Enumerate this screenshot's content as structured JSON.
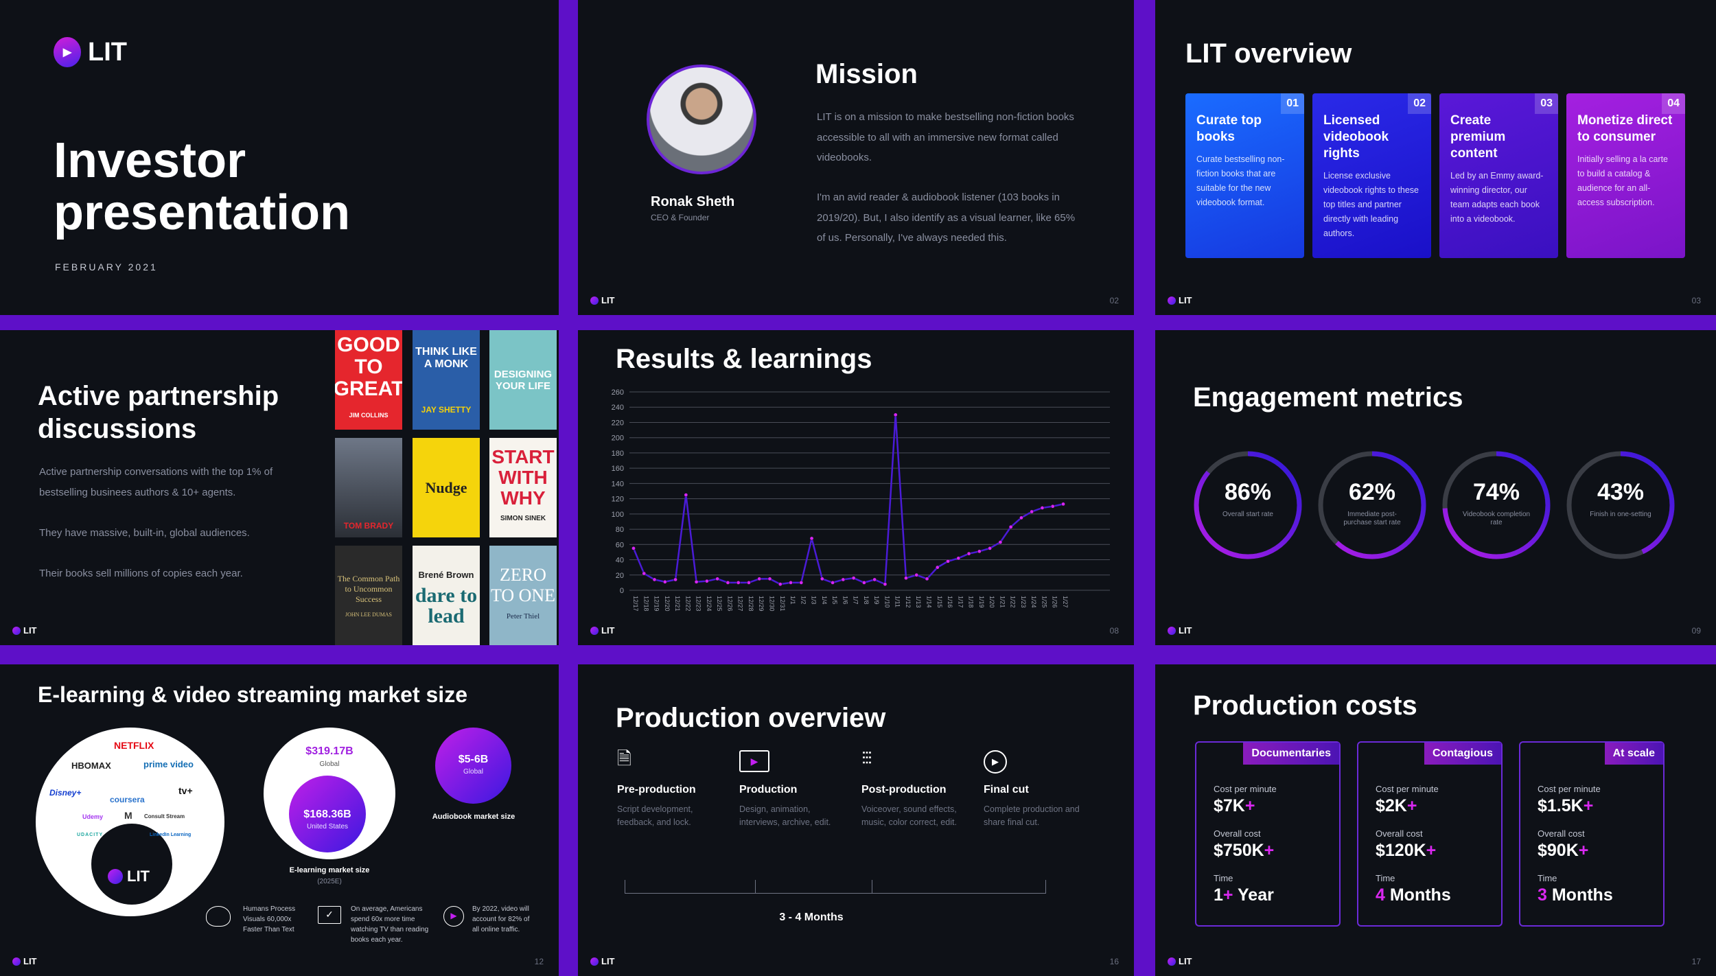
{
  "brand": {
    "logo": "LIT"
  },
  "s1": {
    "title_line1": "Investor",
    "title_line2": "presentation",
    "date": "FEBRUARY 2021"
  },
  "s2": {
    "name": "Ronak Sheth",
    "role": "CEO & Founder",
    "title": "Mission",
    "para1": "LIT is on a mission to make bestselling non-fiction books accessible to all with an immersive new format called videobooks.",
    "para2": "I'm an avid reader & audiobook listener (103 books in 2019/20). But, I also identify as a visual learner, like 65% of us. Personally, I've always needed this.",
    "page": "02"
  },
  "s3": {
    "title": "LIT overview",
    "page": "03",
    "cards": [
      {
        "num": "01",
        "title": "Curate top books",
        "body": "Curate bestselling non-fiction books that are suitable for the new videobook format."
      },
      {
        "num": "02",
        "title": "Licensed videobook rights",
        "body": "License exclusive videobook rights to these top titles and partner directly with leading authors."
      },
      {
        "num": "03",
        "title": "Create premium content",
        "body": "Led by an Emmy award-winning director, our team adapts each book into a videobook."
      },
      {
        "num": "04",
        "title": "Monetize direct to consumer",
        "body": "Initially selling a la carte to build a catalog & audience for an all-access subscription."
      }
    ]
  },
  "s4": {
    "title_line1": "Active partnership",
    "title_line2": "discussions",
    "p1": "Active partnership conversations with the top 1% of bestselling businees authors & 10+ agents.",
    "p2": "They have massive, built-in, global audiences.",
    "p3": "Their books sell millions of copies each year.",
    "books": [
      {
        "title": "GOOD TO GREAT",
        "author": "JIM COLLINS"
      },
      {
        "title": "THINK LIKE A MONK",
        "author": "JAY SHETTY"
      },
      {
        "title": "DESIGNING YOUR LIFE",
        "author": ""
      },
      {
        "title": "",
        "author": "TOM BRADY"
      },
      {
        "title": "Nudge",
        "author": ""
      },
      {
        "title": "START WITH WHY",
        "author": "SIMON SINEK"
      },
      {
        "title": "The Common Path to Uncommon Success",
        "author": "JOHN LEE DUMAS"
      },
      {
        "title": "dare to lead",
        "author": "Brené Brown"
      },
      {
        "title": "ZERO TO ONE",
        "author": "Peter Thiel"
      }
    ]
  },
  "s5": {
    "title": "Results & learnings",
    "page": "08"
  },
  "chart_data": {
    "type": "line",
    "title": "Results & learnings",
    "ylim": [
      0,
      260
    ],
    "yticks": [
      0,
      20,
      40,
      60,
      80,
      100,
      120,
      140,
      160,
      180,
      200,
      220,
      240,
      260
    ],
    "x": [
      "12/17",
      "12/18",
      "12/19",
      "12/20",
      "12/21",
      "12/22",
      "12/23",
      "12/24",
      "12/25",
      "12/26",
      "12/27",
      "12/28",
      "12/29",
      "12/30",
      "12/31",
      "1/1",
      "1/2",
      "1/3",
      "1/4",
      "1/5",
      "1/6",
      "1/7",
      "1/8",
      "1/9",
      "1/10",
      "1/11",
      "1/12",
      "1/13",
      "1/14",
      "1/15",
      "1/16",
      "1/17",
      "1/18",
      "1/19",
      "1/20",
      "1/21",
      "1/22",
      "1/23",
      "1/24",
      "1/25",
      "1/26",
      "1/27"
    ],
    "values": [
      55,
      22,
      14,
      11,
      14,
      125,
      11,
      12,
      15,
      10,
      10,
      10,
      15,
      15,
      8,
      10,
      10,
      68,
      15,
      10,
      14,
      16,
      10,
      14,
      8,
      230,
      16,
      20,
      15,
      30,
      38,
      42,
      48,
      51,
      55,
      63,
      83,
      95,
      103,
      108,
      110,
      113
    ]
  },
  "s6": {
    "title": "Engagement metrics",
    "page": "09",
    "metrics": [
      {
        "value": "86%",
        "label": "Overall start rate",
        "fraction": 0.86
      },
      {
        "value": "62%",
        "label": "Immediate post-purchase start rate",
        "fraction": 0.62
      },
      {
        "value": "74%",
        "label": "Videobook completion rate",
        "fraction": 0.74
      },
      {
        "value": "43%",
        "label": "Finish in one-setting",
        "fraction": 0.43
      }
    ]
  },
  "s7": {
    "title": "E-learning & video streaming market size",
    "page": "12",
    "brands": [
      "NETFLIX",
      "HBOMAX",
      "prime video",
      "Disney+",
      "tv+",
      "coursera",
      "Udemy",
      "M",
      "Consult Stream",
      "UDACITY",
      "LinkedIn Learning"
    ],
    "global_val": "$319.17B",
    "global_lbl": "Global",
    "us_val": "$168.36B",
    "us_lbl": "United States",
    "elearn_caption": "E-learning market size",
    "elearn_year": "(2025E)",
    "audio_val": "$5-6B",
    "audio_lbl": "Global",
    "audio_caption": "Audiobook market size",
    "facts": [
      {
        "text": "Humans Process Visuals 60,000x Faster Than Text"
      },
      {
        "text": "On average, Americans spend 60x more time watching TV than reading books each year."
      },
      {
        "text": "By 2022, video will account for 82% of all online traffic."
      }
    ]
  },
  "s8": {
    "title": "Production overview",
    "page": "16",
    "duration": "3 - 4 Months",
    "steps": [
      {
        "title": "Pre-production",
        "body": "Script development, feedback, and lock.",
        "icon": "document-icon"
      },
      {
        "title": "Production",
        "body": "Design, animation, interviews, archive, edit.",
        "icon": "film-icon"
      },
      {
        "title": "Post-production",
        "body": "Voiceover, sound effects, music, color correct, edit.",
        "icon": "sliders-icon"
      },
      {
        "title": "Final cut",
        "body": "Complete production and share final cut.",
        "icon": "play-icon"
      }
    ]
  },
  "s9": {
    "title": "Production costs",
    "page": "17",
    "cards": [
      {
        "tag": "Documentaries",
        "cpm_lbl": "Cost per minute",
        "cpm": "$7K",
        "oc_lbl": "Overall cost",
        "oc": "$750K",
        "t_lbl": "Time",
        "t_num": "1",
        "t_plus": "+",
        "t_unit": " Year"
      },
      {
        "tag": "Contagious",
        "cpm_lbl": "Cost per minute",
        "cpm": "$2K",
        "oc_lbl": "Overall cost",
        "oc": "$120K",
        "t_lbl": "Time",
        "t_num": "4",
        "t_plus": "",
        "t_unit": " Months"
      },
      {
        "tag": "At scale",
        "cpm_lbl": "Cost per minute",
        "cpm": "$1.5K",
        "oc_lbl": "Overall cost",
        "oc": "$90K",
        "t_lbl": "Time",
        "t_num": "3",
        "t_plus": "",
        "t_unit": " Months"
      }
    ]
  }
}
